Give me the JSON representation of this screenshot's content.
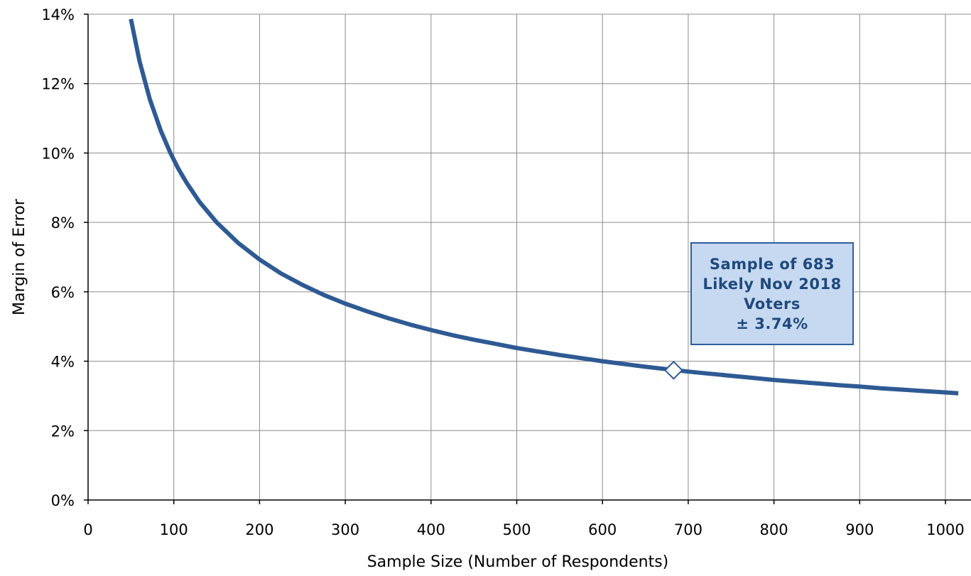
{
  "chart_data": {
    "type": "line",
    "xlabel": "Sample Size (Number of Respondents)",
    "ylabel": "Margin of Error",
    "xlim": [
      0,
      1000
    ],
    "ylim": [
      0,
      14
    ],
    "x_ticks": [
      "0",
      "100",
      "200",
      "300",
      "400",
      "500",
      "600",
      "700",
      "800",
      "900",
      "1000"
    ],
    "y_ticks": [
      "0%",
      "2%",
      "4%",
      "6%",
      "8%",
      "10%",
      "12%",
      "14%"
    ],
    "grid": true,
    "series": [
      {
        "color": "#2e5a94",
        "x": [
          50,
          60,
          72,
          85,
          96,
          105,
          115,
          130,
          150,
          175,
          200,
          225,
          250,
          275,
          300,
          325,
          350,
          375,
          400,
          425,
          450,
          475,
          500,
          525,
          550,
          575,
          600,
          625,
          650,
          675,
          700,
          725,
          750,
          775,
          800,
          825,
          850,
          875,
          900,
          925,
          950,
          975,
          1000
        ],
        "y": [
          13.86,
          12.65,
          11.55,
          10.63,
          10.0,
          9.56,
          9.14,
          8.59,
          8.0,
          7.41,
          6.93,
          6.53,
          6.2,
          5.91,
          5.66,
          5.44,
          5.24,
          5.06,
          4.9,
          4.75,
          4.62,
          4.5,
          4.38,
          4.28,
          4.18,
          4.09,
          4.0,
          3.92,
          3.84,
          3.77,
          3.7,
          3.64,
          3.58,
          3.52,
          3.46,
          3.41,
          3.36,
          3.31,
          3.27,
          3.22,
          3.18,
          3.14,
          3.1
        ]
      }
    ],
    "highlight": {
      "x": 683,
      "y": 3.74,
      "marker": "diamond"
    }
  },
  "callout": {
    "line1": "Sample of 683",
    "line2": "Likely Nov 2018",
    "line3": "Voters",
    "line4": "± 3.74%"
  }
}
